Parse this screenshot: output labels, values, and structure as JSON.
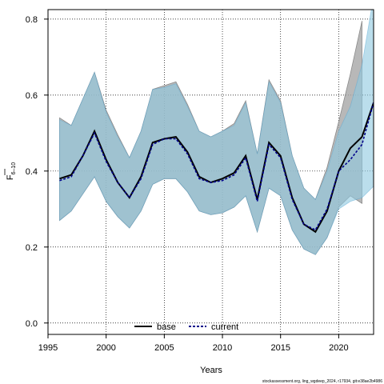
{
  "chart_data": {
    "type": "line",
    "xlabel": "Years",
    "ylabel_main": "F",
    "ylabel_sub": "6–10",
    "xlim": [
      1995,
      2023
    ],
    "ylim": [
      -0.03,
      0.825
    ],
    "xticks": [
      1995,
      2000,
      2005,
      2010,
      2015,
      2020
    ],
    "yticks": [
      0.0,
      0.2,
      0.4,
      0.6,
      0.8
    ],
    "ytick_labels": [
      "0.0",
      "0.2",
      "0.4",
      "0.6",
      "0.8"
    ],
    "grid": true,
    "legend_position": "bottom-center",
    "colors": {
      "base_line": "#000000",
      "base_band": "#a6a6a6",
      "current_line": "#00008b",
      "current_band": "#8ec8e0",
      "current_band_edge": "#5aa9d6"
    },
    "x": [
      1996,
      1997,
      1998,
      1999,
      2000,
      2001,
      2002,
      2003,
      2004,
      2005,
      2006,
      2007,
      2008,
      2009,
      2010,
      2011,
      2012,
      2013,
      2014,
      2015,
      2016,
      2017,
      2018,
      2019,
      2020,
      2021,
      2022,
      2023
    ],
    "series": [
      {
        "name": "base",
        "values": [
          0.38,
          0.39,
          0.44,
          0.505,
          0.43,
          0.37,
          0.33,
          0.385,
          0.475,
          0.485,
          0.49,
          0.45,
          0.385,
          0.37,
          0.38,
          0.395,
          0.44,
          0.325,
          0.475,
          0.44,
          0.33,
          0.26,
          0.24,
          0.295,
          0.4,
          0.46,
          0.49,
          0.58
        ],
        "lower": [
          0.27,
          0.295,
          0.34,
          0.385,
          0.32,
          0.28,
          0.25,
          0.295,
          0.365,
          0.38,
          0.38,
          0.345,
          0.295,
          0.285,
          0.29,
          0.305,
          0.335,
          0.24,
          0.355,
          0.335,
          0.245,
          0.195,
          0.18,
          0.225,
          0.305,
          0.335,
          0.315,
          null
        ],
        "upper": [
          0.54,
          0.52,
          0.59,
          0.66,
          0.56,
          0.495,
          0.435,
          0.505,
          0.615,
          0.625,
          0.635,
          0.575,
          0.505,
          0.49,
          0.505,
          0.525,
          0.585,
          0.445,
          0.64,
          0.585,
          0.44,
          0.355,
          0.325,
          0.41,
          0.53,
          0.655,
          0.795,
          null
        ]
      },
      {
        "name": "current",
        "values": [
          0.375,
          0.385,
          0.44,
          0.5,
          0.425,
          0.37,
          0.33,
          0.38,
          0.47,
          0.485,
          0.485,
          0.445,
          0.38,
          0.37,
          0.375,
          0.39,
          0.435,
          0.32,
          0.47,
          0.435,
          0.325,
          0.26,
          0.245,
          0.3,
          0.4,
          0.43,
          0.47,
          0.58
        ],
        "lower": [
          0.27,
          0.295,
          0.34,
          0.385,
          0.32,
          0.28,
          0.25,
          0.295,
          0.365,
          0.38,
          0.38,
          0.345,
          0.295,
          0.285,
          0.29,
          0.305,
          0.335,
          0.24,
          0.355,
          0.335,
          0.245,
          0.195,
          0.18,
          0.225,
          0.3,
          0.32,
          0.33,
          0.36
        ],
        "upper": [
          0.535,
          0.52,
          0.59,
          0.66,
          0.555,
          0.49,
          0.435,
          0.505,
          0.615,
          0.62,
          0.63,
          0.57,
          0.505,
          0.49,
          0.505,
          0.52,
          0.58,
          0.445,
          0.635,
          0.58,
          0.44,
          0.355,
          0.325,
          0.4,
          0.505,
          0.57,
          0.68,
          0.86
        ]
      }
    ]
  },
  "legend": {
    "base_label": "base",
    "current_label": "current"
  },
  "footer": "stockassessment.org, ling_wgdeep_2024, r17934, git:e38ae2b4986"
}
